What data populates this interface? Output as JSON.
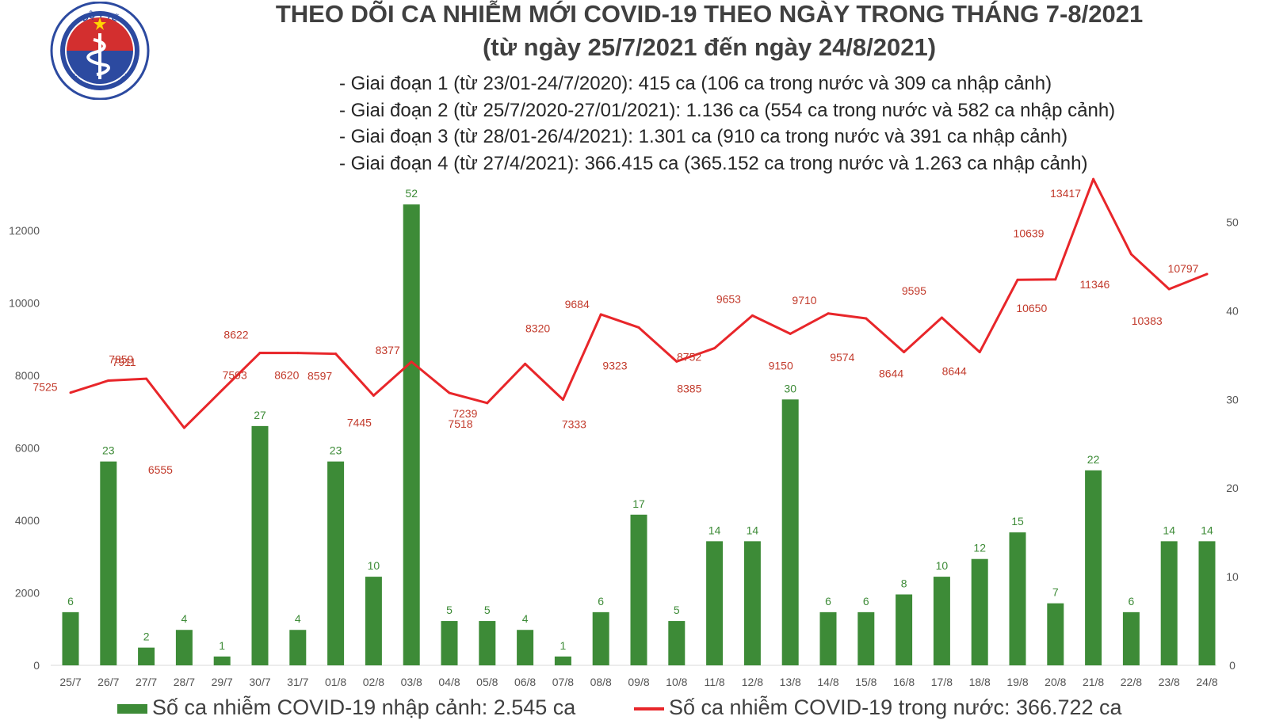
{
  "title_line1": "THEO DÕI CA NHIỄM MỚI COVID-19 THEO NGÀY TRONG THÁNG 7-8/2021",
  "title_line2": "(từ ngày 25/7/2021 đến ngày 24/8/2021)",
  "notes": [
    "- Giai đoạn 1 (từ 23/01-24/7/2020): 415 ca (106 ca trong nước và 309 ca nhập cảnh)",
    "- Giai đoạn 2 (từ 25/7/2020-27/01/2021): 1.136 ca (554 ca trong nước và 582 ca nhập cảnh)",
    "- Giai đoạn 3 (từ 28/01-26/4/2021): 1.301 ca (910 ca trong nước và 391 ca nhập cảnh)",
    "- Giai đoạn 4 (từ 27/4/2021): 366.415 ca (365.152 ca trong nước và 1.263 ca nhập cảnh)"
  ],
  "logo": {
    "top_text": "BỘ Y TẾ",
    "bottom_text": "MINISTRY OF HEALTH"
  },
  "legend": {
    "bars": "Số ca nhiễm COVID-19 nhập cảnh: 2.545 ca",
    "line": "Số ca nhiễm COVID-19 trong nước: 366.722 ca"
  },
  "colors": {
    "bar": "#3d8b37",
    "line": "#e8262a",
    "bar_label": "#3d8b37",
    "line_label": "#c23a2b",
    "axis_text": "#555555"
  },
  "chart_data": {
    "type": "bar+line",
    "categories": [
      "25/7",
      "26/7",
      "27/7",
      "28/7",
      "29/7",
      "30/7",
      "31/7",
      "01/8",
      "02/8",
      "03/8",
      "04/8",
      "05/8",
      "06/8",
      "07/8",
      "08/8",
      "09/8",
      "10/8",
      "11/8",
      "12/8",
      "13/8",
      "14/8",
      "15/8",
      "16/8",
      "17/8",
      "18/8",
      "19/8",
      "20/8",
      "21/8",
      "22/8",
      "23/8",
      "24/8"
    ],
    "series": [
      {
        "name": "Số ca nhiễm COVID-19 nhập cảnh: 2.545 ca",
        "type": "bar",
        "axis": "right",
        "values": [
          6,
          23,
          2,
          4,
          1,
          27,
          4,
          23,
          10,
          52,
          5,
          5,
          4,
          1,
          6,
          17,
          5,
          14,
          14,
          30,
          6,
          6,
          8,
          10,
          12,
          15,
          7,
          22,
          6,
          14,
          14
        ]
      },
      {
        "name": "Số ca nhiễm COVID-19 trong nước: 366.722 ca",
        "type": "line",
        "axis": "left",
        "values": [
          7525,
          7859,
          7911,
          6555,
          7593,
          8622,
          8620,
          8597,
          7445,
          8377,
          7518,
          7239,
          8320,
          7333,
          9684,
          9323,
          8385,
          8752,
          9653,
          9150,
          9710,
          9574,
          8644,
          9595,
          8644,
          10639,
          10650,
          13417,
          11346,
          10383,
          10797
        ]
      }
    ],
    "y_left": {
      "range": [
        0,
        14000
      ],
      "ticks": [
        0,
        2000,
        4000,
        6000,
        8000,
        10000,
        12000
      ]
    },
    "y_right": {
      "range": [
        0,
        50
      ],
      "ticks": [
        0,
        10,
        20,
        30,
        40,
        50
      ]
    },
    "grid": false,
    "legend_position": "bottom"
  }
}
